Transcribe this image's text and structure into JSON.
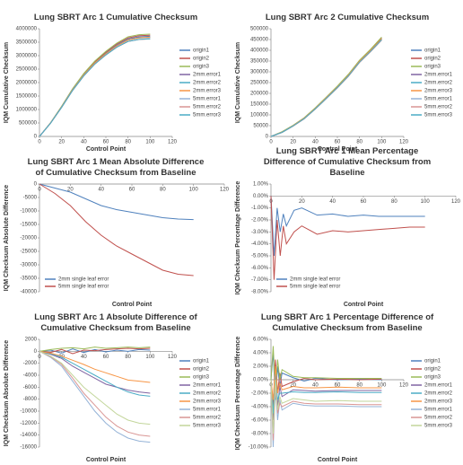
{
  "chart_data": [
    {
      "type": "line",
      "title": "Lung SBRT Arc 1 Cumulative Checksum",
      "x_label": "Control Point",
      "y_label": "IQM Cumulative Checksum",
      "legend": "right",
      "grid": false,
      "x": [
        0,
        10,
        20,
        30,
        40,
        50,
        60,
        70,
        80,
        90,
        100
      ],
      "xlim": [
        0,
        120
      ],
      "xticks": [
        0,
        20,
        40,
        60,
        80,
        100,
        120
      ],
      "ylim": [
        0,
        4000000
      ],
      "yticks": [
        0,
        500000,
        1000000,
        1500000,
        2000000,
        2500000,
        3000000,
        3500000,
        4000000
      ],
      "series": [
        {
          "name": "origin1",
          "color": "#4f81bd",
          "values": [
            0,
            500000,
            1100000,
            1750000,
            2300000,
            2750000,
            3100000,
            3400000,
            3620000,
            3700000,
            3720000
          ]
        },
        {
          "name": "origin2",
          "color": "#c0504d",
          "values": [
            0,
            505000,
            1110000,
            1765000,
            2320000,
            2775000,
            3130000,
            3435000,
            3660000,
            3740000,
            3760000
          ]
        },
        {
          "name": "origin3",
          "color": "#9bbb59",
          "values": [
            0,
            510000,
            1120000,
            1780000,
            2340000,
            2800000,
            3160000,
            3470000,
            3700000,
            3780000,
            3800000
          ]
        },
        {
          "name": "2mm.error1",
          "color": "#8064a2",
          "values": [
            0,
            498000,
            1095000,
            1740000,
            2285000,
            2730000,
            3075000,
            3370000,
            3585000,
            3665000,
            3685000
          ]
        },
        {
          "name": "2mm.error2",
          "color": "#4bacc6",
          "values": [
            0,
            496000,
            1090000,
            1735000,
            2280000,
            2725000,
            3070000,
            3365000,
            3580000,
            3660000,
            3680000
          ]
        },
        {
          "name": "2mm.error3",
          "color": "#f79646",
          "values": [
            0,
            497000,
            1092000,
            1738000,
            2283000,
            2728000,
            3072000,
            3368000,
            3583000,
            3663000,
            3683000
          ]
        },
        {
          "name": "5mm.error1",
          "color": "#95b3d7",
          "values": [
            0,
            492000,
            1080000,
            1715000,
            2250000,
            2690000,
            3030000,
            3320000,
            3530000,
            3605000,
            3625000
          ]
        },
        {
          "name": "5mm.error2",
          "color": "#d99694",
          "values": [
            0,
            490000,
            1075000,
            1710000,
            2245000,
            2685000,
            3025000,
            3315000,
            3525000,
            3600000,
            3620000
          ]
        },
        {
          "name": "5mm.error3",
          "color": "#4bacc6",
          "values": [
            0,
            491000,
            1078000,
            1712000,
            2248000,
            2688000,
            3028000,
            3318000,
            3528000,
            3603000,
            3623000
          ]
        }
      ]
    },
    {
      "type": "line",
      "title": "Lung SBRT Arc 2 Cumulative Checksum",
      "x_label": "Control Point",
      "y_label": "IQM Cumulative Checksum",
      "legend": "right",
      "grid": false,
      "x": [
        0,
        10,
        20,
        30,
        40,
        50,
        60,
        70,
        80,
        90,
        100
      ],
      "xlim": [
        0,
        120
      ],
      "xticks": [
        0,
        20,
        40,
        60,
        80,
        100,
        120
      ],
      "ylim": [
        0,
        500000
      ],
      "yticks": [
        0,
        50000,
        100000,
        150000,
        200000,
        250000,
        300000,
        350000,
        400000,
        450000,
        500000
      ],
      "series": [
        {
          "name": "origin1",
          "color": "#4f81bd",
          "values": [
            0,
            20000,
            50000,
            85000,
            130000,
            180000,
            230000,
            285000,
            350000,
            400000,
            455000
          ]
        },
        {
          "name": "origin2",
          "color": "#c0504d",
          "values": [
            0,
            21000,
            51000,
            86000,
            131000,
            181000,
            232000,
            287000,
            352000,
            402000,
            458000
          ]
        },
        {
          "name": "origin3",
          "color": "#9bbb59",
          "values": [
            0,
            22000,
            52000,
            87000,
            133000,
            183000,
            234000,
            289000,
            354000,
            405000,
            461000
          ]
        },
        {
          "name": "2mm.error1",
          "color": "#8064a2",
          "values": [
            0,
            19500,
            49500,
            84000,
            129000,
            179000,
            229000,
            283000,
            348000,
            398000,
            452000
          ]
        },
        {
          "name": "2mm.error2",
          "color": "#4bacc6",
          "values": [
            0,
            19000,
            49000,
            83500,
            128500,
            178500,
            228000,
            282000,
            347000,
            397000,
            451000
          ]
        },
        {
          "name": "2mm.error3",
          "color": "#f79646",
          "values": [
            0,
            19800,
            49800,
            84500,
            129500,
            179500,
            229500,
            284000,
            349000,
            399000,
            453000
          ]
        },
        {
          "name": "5mm.error1",
          "color": "#95b3d7",
          "values": [
            0,
            18500,
            48000,
            82000,
            127000,
            176000,
            226000,
            280000,
            344000,
            394000,
            448000
          ]
        },
        {
          "name": "5mm.error2",
          "color": "#d99694",
          "values": [
            0,
            18000,
            47500,
            81500,
            126500,
            175500,
            225000,
            279000,
            343000,
            393000,
            447000
          ]
        },
        {
          "name": "5mm.error3",
          "color": "#4bacc6",
          "values": [
            0,
            18800,
            48500,
            82500,
            127500,
            176500,
            227000,
            281000,
            345000,
            395000,
            449000
          ]
        }
      ]
    },
    {
      "type": "line",
      "title": "Lung SBRT Arc 1 Mean Absolute Difference of Cumulative Checksum from Baseline",
      "x_label": "Control Point",
      "y_label": "IQM Checksum Absolute Difference",
      "legend": "lower left",
      "grid": false,
      "x": [
        0,
        10,
        20,
        30,
        40,
        50,
        60,
        70,
        80,
        90,
        100
      ],
      "xlim": [
        0,
        120
      ],
      "xticks": [
        0,
        20,
        40,
        60,
        80,
        100,
        120
      ],
      "ylim": [
        -40000,
        0
      ],
      "yticks": [
        -40000,
        -35000,
        -30000,
        -25000,
        -20000,
        -15000,
        -10000,
        -5000,
        0
      ],
      "series": [
        {
          "name": "2mm single leaf error",
          "color": "#4f81bd",
          "values": [
            0,
            -1500,
            -3000,
            -5500,
            -8000,
            -9500,
            -10500,
            -11500,
            -12500,
            -13000,
            -13200
          ]
        },
        {
          "name": "5mm single leaf error",
          "color": "#c0504d",
          "values": [
            0,
            -3500,
            -8000,
            -14000,
            -19000,
            -23000,
            -26000,
            -29000,
            -32000,
            -33500,
            -34000
          ]
        }
      ]
    },
    {
      "type": "line",
      "title": "Lung SBRT Arc 1 Mean Percentage Difference of Cumulative Checksum from Baseline",
      "x_label": "Control Point",
      "y_label": "IQM Checksum Percentage Difference",
      "legend": "lower left",
      "grid": false,
      "x": [
        0,
        2,
        4,
        6,
        8,
        10,
        15,
        20,
        30,
        40,
        50,
        60,
        70,
        80,
        90,
        100
      ],
      "xlim": [
        0,
        120
      ],
      "xticks": [
        0,
        20,
        40,
        60,
        80,
        100,
        120
      ],
      "ylim": [
        -8,
        1
      ],
      "yticks": [
        {
          "value": -8,
          "label": "-8.00%"
        },
        {
          "value": -7,
          "label": "-7.00%"
        },
        {
          "value": -6,
          "label": "-6.00%"
        },
        {
          "value": -5,
          "label": "-5.00%"
        },
        {
          "value": -4,
          "label": "-4.00%"
        },
        {
          "value": -3,
          "label": "-3.00%"
        },
        {
          "value": -2,
          "label": "-2.00%"
        },
        {
          "value": -1,
          "label": "-1.00%"
        },
        {
          "value": 0,
          "label": "0.00%"
        },
        {
          "value": 1,
          "label": "1.00%"
        }
      ],
      "series": [
        {
          "name": "2mm single leaf error",
          "color": "#4f81bd",
          "values": [
            0,
            -5,
            -1,
            -3,
            -1.5,
            -2.5,
            -1.2,
            -1,
            -1.6,
            -1.5,
            -1.7,
            -1.6,
            -1.7,
            -1.7,
            -1.7,
            -1.7
          ]
        },
        {
          "name": "5mm single leaf error",
          "color": "#c0504d",
          "values": [
            0,
            -7,
            -2,
            -5,
            -2.5,
            -4,
            -3,
            -2.5,
            -3.2,
            -2.9,
            -3,
            -2.9,
            -2.8,
            -2.7,
            -2.6,
            -2.6
          ]
        }
      ]
    },
    {
      "type": "line",
      "title": "Lung SBRT Arc 1 Absolute Difference of Cumulative Checksum from Baseline",
      "x_label": "Control Point",
      "y_label": "IQM Checksum Absolute Difference",
      "legend": "right",
      "grid": false,
      "x": [
        0,
        10,
        20,
        30,
        40,
        50,
        60,
        70,
        80,
        90,
        100
      ],
      "xlim": [
        0,
        120
      ],
      "xticks": [
        0,
        20,
        40,
        60,
        80,
        100,
        120
      ],
      "ylim": [
        -16000,
        2000
      ],
      "yticks": [
        -16000,
        -14000,
        -12000,
        -10000,
        -8000,
        -6000,
        -4000,
        -2000,
        0,
        2000
      ],
      "series": [
        {
          "name": "origin1",
          "color": "#4f81bd",
          "values": [
            0,
            200,
            -300,
            400,
            -200,
            300,
            -100,
            200,
            0,
            300,
            200
          ]
        },
        {
          "name": "origin2",
          "color": "#c0504d",
          "values": [
            0,
            -200,
            300,
            -400,
            200,
            100,
            300,
            400,
            500,
            400,
            500
          ]
        },
        {
          "name": "origin3",
          "color": "#9bbb59",
          "values": [
            0,
            300,
            500,
            600,
            400,
            700,
            500,
            600,
            700,
            600,
            700
          ]
        },
        {
          "name": "2mm.error1",
          "color": "#8064a2",
          "values": [
            0,
            -500,
            -1200,
            -2500,
            -3500,
            -4500,
            -5500,
            -6000,
            -6500,
            -6800,
            -7000
          ]
        },
        {
          "name": "2mm.error2",
          "color": "#4bacc6",
          "values": [
            0,
            -400,
            -1000,
            -2000,
            -3000,
            -4000,
            -5000,
            -6000,
            -6800,
            -7300,
            -7500
          ]
        },
        {
          "name": "2mm.error3",
          "color": "#f79646",
          "values": [
            0,
            -300,
            -800,
            -1500,
            -2200,
            -3000,
            -3600,
            -4200,
            -4800,
            -5000,
            -5200
          ]
        },
        {
          "name": "5mm.error1",
          "color": "#95b3d7",
          "values": [
            0,
            -1000,
            -2500,
            -5000,
            -7500,
            -10000,
            -12000,
            -13500,
            -14500,
            -15000,
            -15200
          ]
        },
        {
          "name": "5mm.error2",
          "color": "#d99694",
          "values": [
            0,
            -900,
            -2200,
            -4500,
            -7000,
            -9000,
            -11000,
            -12500,
            -13500,
            -14000,
            -14200
          ]
        },
        {
          "name": "5mm.error3",
          "color": "#c3d69b",
          "values": [
            0,
            -800,
            -2000,
            -4000,
            -6000,
            -7500,
            -9000,
            -10500,
            -11500,
            -12000,
            -12200
          ]
        }
      ]
    },
    {
      "type": "line",
      "title": "Lung SBRT Arc 1 Percentage Difference of Cumulative Checksum from Baseline",
      "x_label": "Control Point",
      "y_label": "IQM Checksum Percentage Difference",
      "legend": "right",
      "grid": false,
      "x": [
        0,
        2,
        4,
        6,
        8,
        10,
        20,
        30,
        40,
        60,
        80,
        100
      ],
      "xlim": [
        0,
        120
      ],
      "xticks": [
        0,
        20,
        40,
        60,
        80,
        100,
        120
      ],
      "ylim": [
        -10,
        6
      ],
      "yticks": [
        {
          "value": -10,
          "label": "-10.00%"
        },
        {
          "value": -8,
          "label": "-8.00%"
        },
        {
          "value": -6,
          "label": "-6.00%"
        },
        {
          "value": -4,
          "label": "-4.00%"
        },
        {
          "value": -2,
          "label": "-2.00%"
        },
        {
          "value": 0,
          "label": "0.00%"
        },
        {
          "value": 2,
          "label": "2.00%"
        },
        {
          "value": 4,
          "label": "4.00%"
        },
        {
          "value": 6,
          "label": "6.00%"
        }
      ],
      "series": [
        {
          "name": "origin1",
          "color": "#4f81bd",
          "values": [
            0,
            4,
            -3,
            2,
            -1,
            1,
            0.3,
            -0.2,
            0.2,
            0,
            0.1,
            0
          ]
        },
        {
          "name": "origin2",
          "color": "#c0504d",
          "values": [
            0,
            -4,
            3,
            -2,
            1,
            -1,
            -0.3,
            0.2,
            0,
            0.1,
            0,
            0.1
          ]
        },
        {
          "name": "origin3",
          "color": "#9bbb59",
          "values": [
            0,
            5,
            -2,
            3,
            0,
            1.5,
            0.5,
            0.3,
            0.3,
            0.2,
            0.2,
            0.2
          ]
        },
        {
          "name": "2mm.error1",
          "color": "#8064a2",
          "values": [
            0,
            -6,
            2,
            -4,
            -1,
            -2.5,
            -1.5,
            -1.6,
            -1.7,
            -1.6,
            -1.6,
            -1.6
          ]
        },
        {
          "name": "2mm.error2",
          "color": "#4bacc6",
          "values": [
            0,
            -5,
            1,
            -3,
            -2,
            -2,
            -1.8,
            -1.9,
            -1.9,
            -1.8,
            -1.9,
            -1.9
          ]
        },
        {
          "name": "2mm.error3",
          "color": "#f79646",
          "values": [
            0,
            -3,
            2,
            -2,
            -0.5,
            -1.5,
            -1,
            -1.2,
            -1.2,
            -1.1,
            -1.2,
            -1.2
          ]
        },
        {
          "name": "5mm.error1",
          "color": "#95b3d7",
          "values": [
            0,
            -10,
            -1,
            -6,
            -3,
            -4.5,
            -3.5,
            -3.8,
            -3.9,
            -3.9,
            -4,
            -4
          ]
        },
        {
          "name": "5mm.error2",
          "color": "#d99694",
          "values": [
            0,
            -9,
            -0.5,
            -5,
            -3.5,
            -4,
            -3.2,
            -3.5,
            -3.6,
            -3.6,
            -3.7,
            -3.7
          ]
        },
        {
          "name": "5mm.error3",
          "color": "#c3d69b",
          "values": [
            0,
            -8,
            0,
            -4.5,
            -2.5,
            -3.5,
            -2.8,
            -3,
            -3.2,
            -3.1,
            -3.2,
            -3.2
          ]
        }
      ]
    }
  ]
}
